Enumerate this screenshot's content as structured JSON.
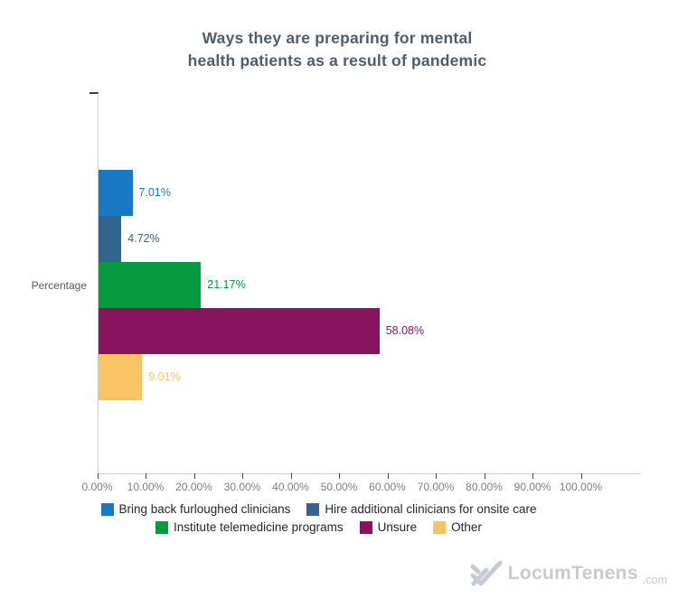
{
  "title": {
    "line1": "Ways they are preparing for mental",
    "line2": "health patients as a result of pandemic"
  },
  "chart_data": {
    "type": "bar",
    "orientation": "horizontal",
    "group_label": "Percentage",
    "xlim": [
      0,
      100
    ],
    "x_ticks": [
      "0.00%",
      "10.00%",
      "20.00%",
      "30.00%",
      "40.00%",
      "50.00%",
      "60.00%",
      "70.00%",
      "80.00%",
      "90.00%",
      "100.00%"
    ],
    "grid": false,
    "legend_position": "bottom",
    "series": [
      {
        "name": "Bring back furloughed clinicians",
        "value": 7.01,
        "label": "7.01%",
        "color": "#1878c6"
      },
      {
        "name": "Hire additional clinicians for onsite care",
        "value": 4.72,
        "label": "4.72%",
        "color": "#35638f"
      },
      {
        "name": "Institute telemedicine programs",
        "value": 21.17,
        "label": "21.17%",
        "color": "#079a40"
      },
      {
        "name": "Unsure",
        "value": 58.08,
        "label": "58.08%",
        "color": "#8a135f"
      },
      {
        "name": "Other",
        "value": 9.01,
        "label": "9.01%",
        "color": "#f9c366"
      }
    ]
  },
  "footer": {
    "brand_name": "LocumTenens",
    "brand_suffix": ".com"
  }
}
